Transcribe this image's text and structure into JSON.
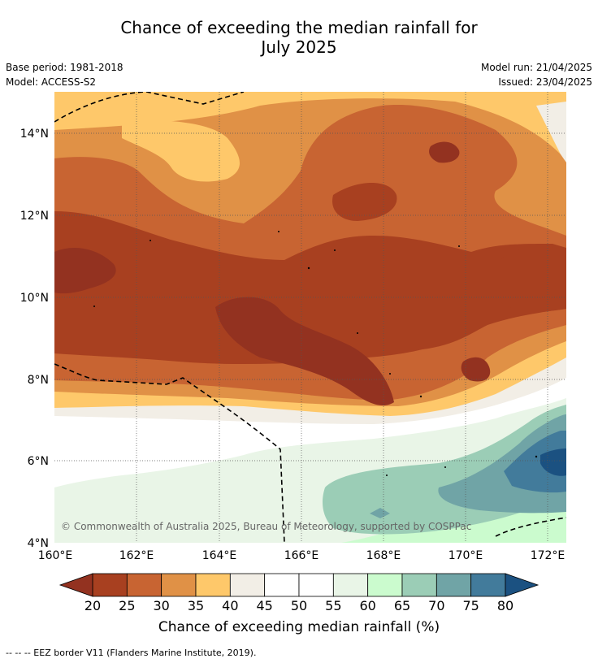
{
  "title_line1": "Chance of exceeding the median rainfall for",
  "title_line2": "July 2025",
  "base_period": "Base period: 1981-2018",
  "model": "Model: ACCESS-S2",
  "model_run": "Model run: 21/04/2025",
  "issued": "Issued: 23/04/2025",
  "lat_ticks": [
    "14°N",
    "12°N",
    "10°N",
    "8°N",
    "6°N",
    "4°N"
  ],
  "lon_ticks": [
    "160°E",
    "162°E",
    "164°E",
    "166°E",
    "168°E",
    "170°E",
    "172°E"
  ],
  "copyright": "© Commonwealth of Australia 2025, Bureau of Meteorology, supported by COSPPac",
  "colorbar": {
    "ticks": [
      "20",
      "25",
      "30",
      "35",
      "40",
      "45",
      "50",
      "55",
      "60",
      "65",
      "70",
      "75",
      "80"
    ],
    "label": "Chance of exceeding median rainfall (%)",
    "colors": [
      "#a84020",
      "#c86432",
      "#e09146",
      "#fec86a",
      "#f2eee6",
      "#ffffff",
      "#ffffff",
      "#e9f5e7",
      "#cbfbce",
      "#9bcdb6",
      "#70a4a6",
      "#427b9b"
    ],
    "under_color": "#933220",
    "over_color": "#1b5181"
  },
  "footnote": "-- -- -- EEZ border V11 (Flanders Marine Institute, 2019)."
}
